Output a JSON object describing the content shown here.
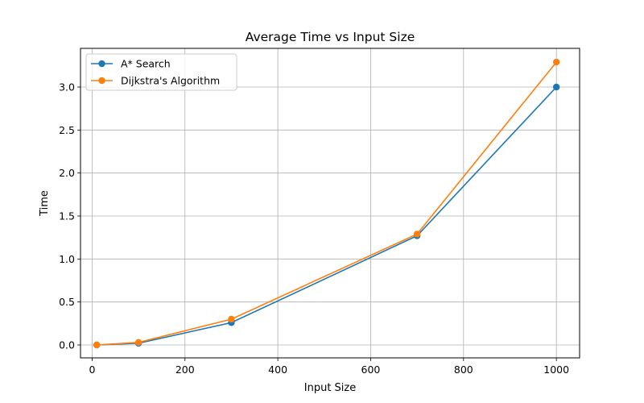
{
  "chart_data": {
    "type": "line",
    "title": "Average Time vs Input Size",
    "xlabel": "Input Size",
    "ylabel": "Time",
    "xlim": [
      -25,
      1050
    ],
    "ylim": [
      -0.15,
      3.45
    ],
    "xticks": [
      0,
      200,
      400,
      600,
      800,
      1000
    ],
    "yticks": [
      0.0,
      0.5,
      1.0,
      1.5,
      2.0,
      2.5,
      3.0
    ],
    "xtick_labels": [
      "0",
      "200",
      "400",
      "600",
      "800",
      "1000"
    ],
    "ytick_labels": [
      "0.0",
      "0.5",
      "1.0",
      "1.5",
      "2.0",
      "2.5",
      "3.0"
    ],
    "grid": true,
    "legend_position": "top-left",
    "x": [
      10,
      100,
      300,
      700,
      1000
    ],
    "series": [
      {
        "name": "A* Search",
        "color": "#1f77b4",
        "values": [
          0.0,
          0.02,
          0.26,
          1.27,
          3.0
        ]
      },
      {
        "name": "Dijkstra's Algorithm",
        "color": "#ff7f0e",
        "values": [
          0.0,
          0.03,
          0.3,
          1.29,
          3.29
        ]
      }
    ]
  }
}
